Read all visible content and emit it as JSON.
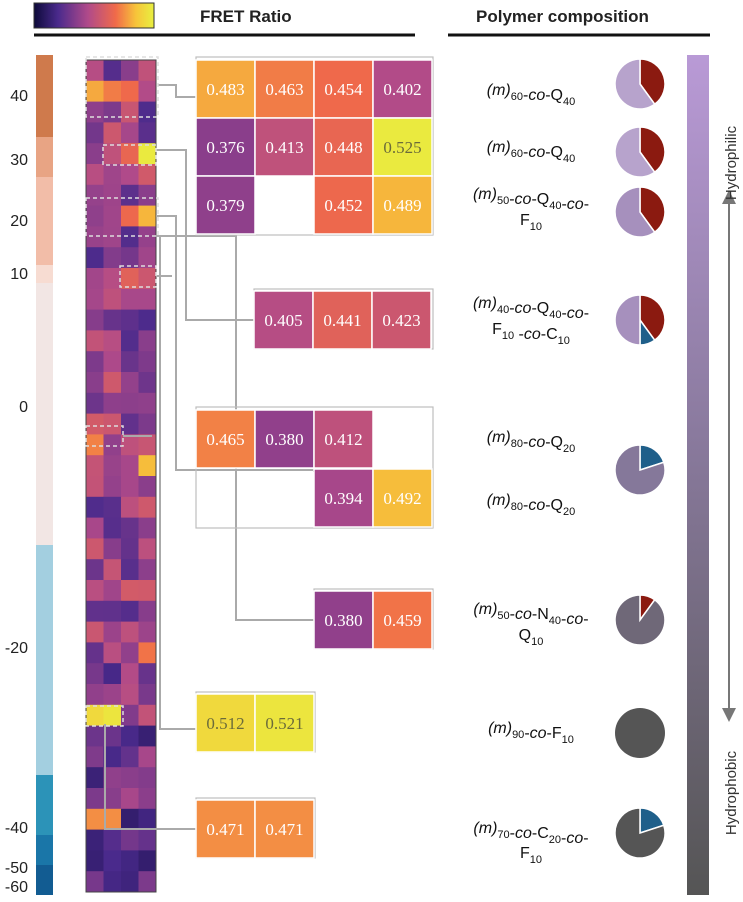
{
  "chart_data": {
    "type": "heatmap",
    "title": "FRET Ratio",
    "right_title": "Polymer composition",
    "colorbar": {
      "label": "FRET Ratio",
      "colors": [
        "#0d0a3a",
        "#4a2a8c",
        "#b04a8a",
        "#f06a4a",
        "#f7c43a",
        "#e8f040"
      ]
    },
    "hydrophobicity_axis": {
      "ticks": [
        "40",
        "30",
        "20",
        "10",
        "0",
        "-20",
        "-40",
        "-50",
        "-60"
      ],
      "tick_values": [
        40,
        30,
        20,
        10,
        0,
        -20,
        -40,
        -50,
        -60
      ]
    },
    "heatmap": {
      "rows": 40,
      "cols": 4,
      "value_range": [
        0.28,
        0.53
      ]
    },
    "value_tables": [
      {
        "cells": [
          "0.483",
          "0.463",
          "0.454",
          "0.402"
        ]
      },
      {
        "cells": [
          "0.376",
          "0.413",
          "0.448",
          "0.525"
        ]
      },
      {
        "cells": [
          "0.379",
          "",
          "0.452",
          "0.489"
        ]
      },
      {
        "cells": [
          "0.405",
          "0.441",
          "0.423"
        ]
      },
      {
        "cells": [
          "0.465",
          "0.380",
          "0.412",
          ""
        ]
      },
      {
        "cells": [
          "",
          "",
          "0.394",
          "0.492"
        ]
      },
      {
        "cells": [
          "0.380",
          "0.459"
        ]
      },
      {
        "cells": [
          "0.512",
          "0.521"
        ]
      },
      {
        "cells": [
          "0.471",
          "0.471"
        ]
      }
    ],
    "compositions": [
      {
        "parts": [
          [
            "(m)",
            "it"
          ],
          [
            "60",
            "sub"
          ],
          [
            "-",
            ""
          ],
          [
            "co",
            "it"
          ],
          [
            "-Q",
            ""
          ],
          [
            "40",
            "sub"
          ]
        ],
        "pie": [
          [
            "#b7a3cc",
            0.6
          ],
          [
            "#8b1a10",
            0.4
          ]
        ]
      },
      {
        "parts": [
          [
            "(m)",
            "it"
          ],
          [
            "60",
            "sub"
          ],
          [
            "-",
            ""
          ],
          [
            "co",
            "it"
          ],
          [
            "-Q",
            ""
          ],
          [
            "40",
            "sub"
          ]
        ],
        "pie": [
          [
            "#b7a3cc",
            0.6
          ],
          [
            "#8b1a10",
            0.4
          ]
        ]
      },
      {
        "parts": [
          [
            "(m)",
            "it"
          ],
          [
            "50",
            "sub"
          ],
          [
            "-",
            ""
          ],
          [
            "co",
            "it"
          ],
          [
            "-Q",
            ""
          ],
          [
            "40",
            "sub"
          ],
          [
            "-",
            ""
          ],
          [
            "co",
            "it"
          ],
          [
            "-",
            ""
          ]
        ],
        "parts2": [
          [
            "F",
            ""
          ],
          [
            "10",
            "sub"
          ]
        ],
        "pie": [
          [
            "#a690bd",
            0.6
          ],
          [
            "#8b1a10",
            0.4
          ]
        ]
      },
      {
        "parts": [
          [
            "(m)",
            "it"
          ],
          [
            "40",
            "sub"
          ],
          [
            "-",
            ""
          ],
          [
            "co",
            "it"
          ],
          [
            "-Q",
            ""
          ],
          [
            "40",
            "sub"
          ],
          [
            "-",
            ""
          ],
          [
            "co",
            "it"
          ],
          [
            "-",
            ""
          ]
        ],
        "parts2": [
          [
            "F",
            ""
          ],
          [
            "10",
            "sub"
          ],
          [
            " -",
            ""
          ],
          [
            "co",
            "it"
          ],
          [
            "-C",
            ""
          ],
          [
            "10",
            "sub"
          ]
        ],
        "pie": [
          [
            "#a690bd",
            0.5
          ],
          [
            "#8b1a10",
            0.4
          ],
          [
            "#1f5f8a",
            0.1
          ]
        ]
      },
      {
        "parts": [
          [
            "(m)",
            "it"
          ],
          [
            "80",
            "sub"
          ],
          [
            "-",
            ""
          ],
          [
            "co",
            "it"
          ],
          [
            "-Q",
            ""
          ],
          [
            "20",
            "sub"
          ]
        ],
        "pie": [
          [
            "#85789a",
            0.8
          ],
          [
            "#1f5f8a",
            0.2
          ]
        ]
      },
      {
        "parts": [
          [
            "(m)",
            "it"
          ],
          [
            "80",
            "sub"
          ],
          [
            "-",
            ""
          ],
          [
            "co",
            "it"
          ],
          [
            "-Q",
            ""
          ],
          [
            "20",
            "sub"
          ]
        ]
      },
      {
        "parts": [
          [
            "(m)",
            "it"
          ],
          [
            "50",
            "sub"
          ],
          [
            "-",
            ""
          ],
          [
            "co",
            "it"
          ],
          [
            "-N",
            ""
          ],
          [
            "40",
            "sub"
          ],
          [
            "-",
            ""
          ],
          [
            "co",
            "it"
          ],
          [
            "-",
            ""
          ]
        ],
        "parts2": [
          [
            "Q",
            ""
          ],
          [
            "10",
            "sub"
          ]
        ],
        "pie": [
          [
            "#6f6878",
            0.9
          ],
          [
            "#8b1a10",
            0.1
          ]
        ]
      },
      {
        "parts": [
          [
            "(m)",
            "it"
          ],
          [
            "90",
            "sub"
          ],
          [
            "-",
            ""
          ],
          [
            "co",
            "it"
          ],
          [
            "-F",
            ""
          ],
          [
            "10",
            "sub"
          ]
        ],
        "pie": [
          [
            "#555555",
            1.0
          ]
        ]
      },
      {
        "parts": [
          [
            "(m)",
            "it"
          ],
          [
            "70",
            "sub"
          ],
          [
            "-",
            ""
          ],
          [
            "co",
            "it"
          ],
          [
            "-C",
            ""
          ],
          [
            "20",
            "sub"
          ],
          [
            "-",
            ""
          ],
          [
            "co",
            "it"
          ],
          [
            "-",
            ""
          ]
        ],
        "parts2": [
          [
            "F",
            ""
          ],
          [
            "10",
            "sub"
          ]
        ],
        "pie": [
          [
            "#555555",
            0.8
          ],
          [
            "#1f5f8a",
            0.2
          ]
        ]
      }
    ],
    "side_axis": {
      "top_label": "Hydrophilic",
      "bottom_label": "Hydrophobic"
    }
  }
}
